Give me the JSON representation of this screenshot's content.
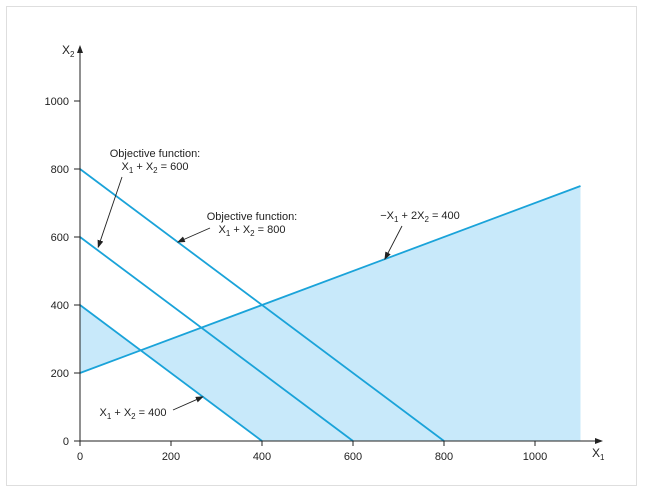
{
  "chart_data": {
    "type": "line",
    "xlabel": "X",
    "xlabel_sub": "1",
    "ylabel": "X",
    "ylabel_sub": "2",
    "xlim": [
      0,
      1150
    ],
    "ylim": [
      0,
      1000
    ],
    "xticks": [
      0,
      200,
      400,
      600,
      800,
      1000
    ],
    "yticks": [
      0,
      200,
      400,
      600,
      800,
      1000
    ],
    "grid": false,
    "colors": {
      "line": "#1aa3d9",
      "region": "#c8e9fa",
      "axis": "#222222",
      "frame": "#dedede"
    },
    "feasible_region": [
      [
        0,
        400
      ],
      [
        0,
        200
      ],
      [
        1100,
        750
      ],
      [
        1100,
        0
      ],
      [
        400,
        0
      ]
    ],
    "series": [
      {
        "values": [
          [
            0,
            200
          ],
          [
            1100,
            750
          ]
        ]
      },
      {
        "values": [
          [
            0,
            800
          ],
          [
            800,
            0
          ]
        ]
      },
      {
        "values": [
          [
            0,
            600
          ],
          [
            600,
            0
          ]
        ]
      },
      {
        "values": [
          [
            0,
            400
          ],
          [
            400,
            0
          ]
        ]
      }
    ],
    "annotations": [
      {
        "lines": [
          "Objective function:",
          "X1 + X2 = 600"
        ],
        "arrow_target": [
          40,
          570
        ]
      },
      {
        "lines": [
          "Objective function:",
          "X1 + X2 = 800"
        ],
        "arrow_target": [
          215,
          585
        ]
      },
      {
        "lines": [
          "−X1 + 2X2 = 400"
        ],
        "arrow_target": [
          670,
          535
        ]
      },
      {
        "lines": [
          "X1 + X2 = 400"
        ],
        "arrow_target": [
          270,
          130
        ]
      }
    ]
  }
}
